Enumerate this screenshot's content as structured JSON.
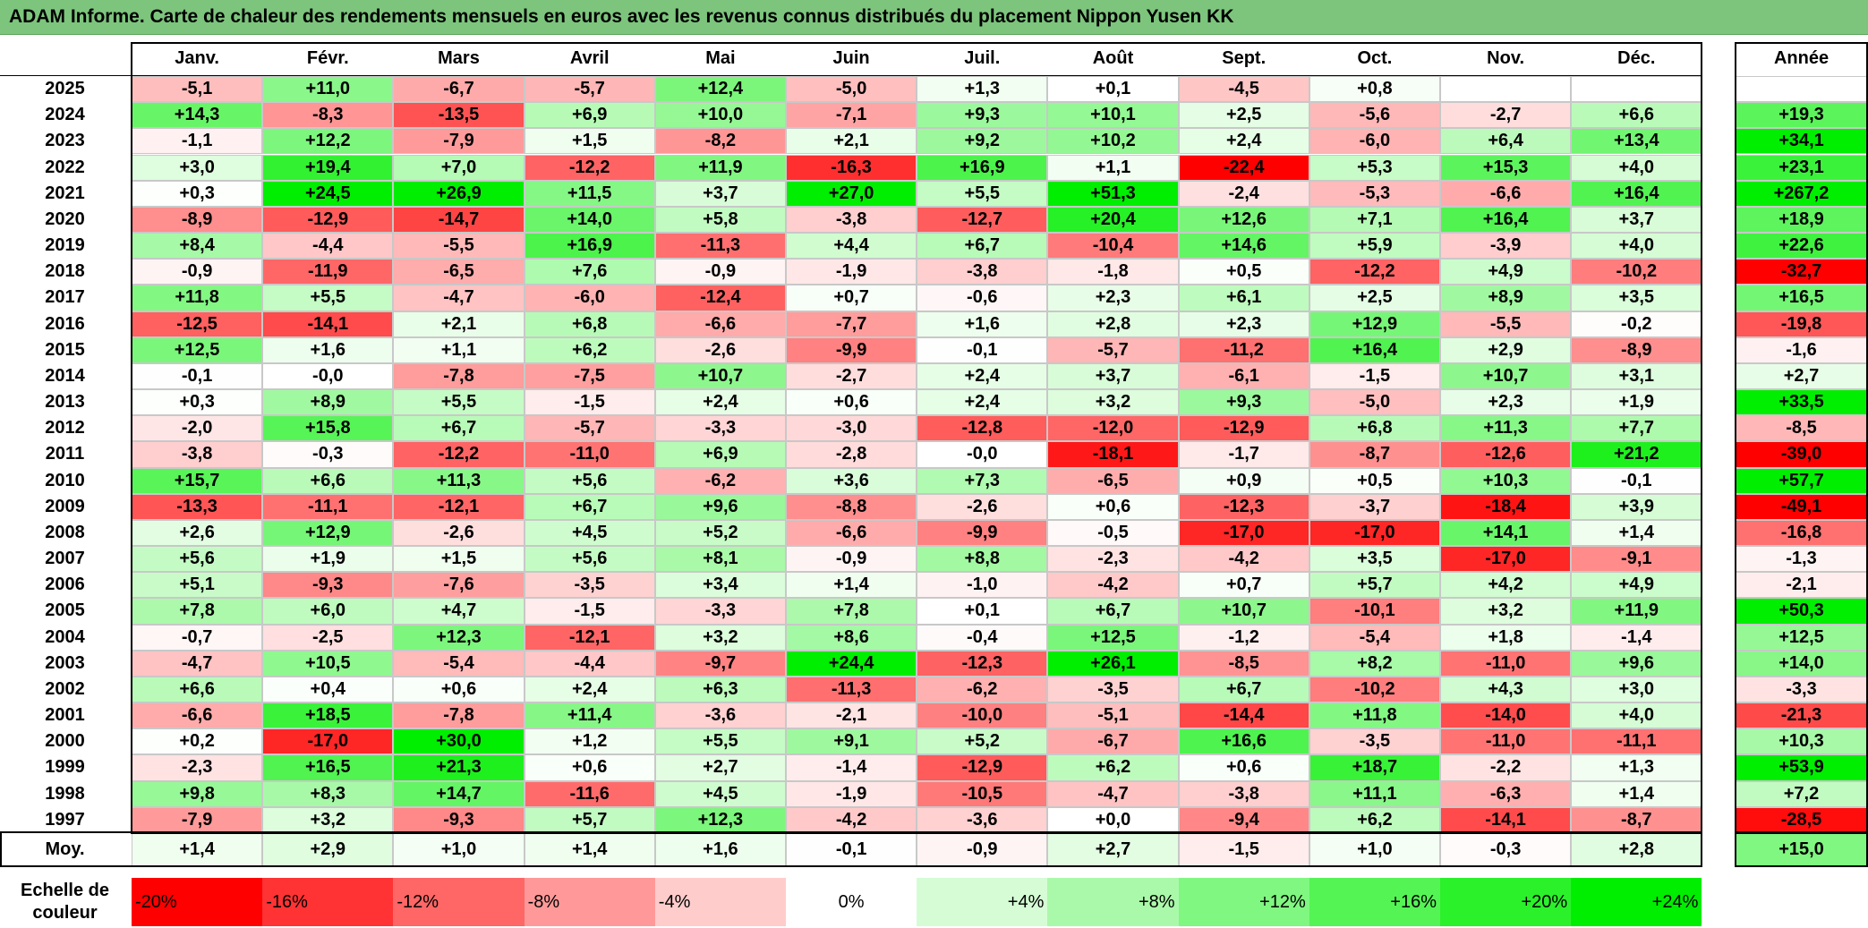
{
  "title": "ADAM Informe. Carte de chaleur des rendements mensuels en euros avec les revenus connus distribués du placement Nippon Yusen KK",
  "colors": {
    "title_bg": "#7dc57d",
    "negative_max": "#ff0000",
    "zero": "#ffffff",
    "positive_max": "#00ee00"
  },
  "chart_data": {
    "type": "heatmap",
    "title": "ADAM Informe. Carte de chaleur des rendements mensuels en euros avec les revenus connus distribués du placement Nippon Yusen KK",
    "months": [
      "Janv.",
      "Févr.",
      "Mars",
      "Avril",
      "Mai",
      "Juin",
      "Juil.",
      "Août",
      "Sept.",
      "Oct.",
      "Nov.",
      "Déc."
    ],
    "year_column_label": "Année",
    "average_row_label": "Moy.",
    "rows": [
      {
        "year": "2025",
        "values": [
          "-5,1",
          "+11,0",
          "-6,7",
          "-5,7",
          "+12,4",
          "-5,0",
          "+1,3",
          "+0,1",
          "-4,5",
          "+0,8",
          "",
          ""
        ],
        "annual": ""
      },
      {
        "year": "2024",
        "values": [
          "+14,3",
          "-8,3",
          "-13,5",
          "+6,9",
          "+10,0",
          "-7,1",
          "+9,3",
          "+10,1",
          "+2,5",
          "-5,6",
          "-2,7",
          "+6,6"
        ],
        "annual": "+19,3"
      },
      {
        "year": "2023",
        "values": [
          "-1,1",
          "+12,2",
          "-7,9",
          "+1,5",
          "-8,2",
          "+2,1",
          "+9,2",
          "+10,2",
          "+2,4",
          "-6,0",
          "+6,4",
          "+13,4"
        ],
        "annual": "+34,1"
      },
      {
        "year": "2022",
        "values": [
          "+3,0",
          "+19,4",
          "+7,0",
          "-12,2",
          "+11,9",
          "-16,3",
          "+16,9",
          "+1,1",
          "-22,4",
          "+5,3",
          "+15,3",
          "+4,0"
        ],
        "annual": "+23,1"
      },
      {
        "year": "2021",
        "values": [
          "+0,3",
          "+24,5",
          "+26,9",
          "+11,5",
          "+3,7",
          "+27,0",
          "+5,5",
          "+51,3",
          "-2,4",
          "-5,3",
          "-6,6",
          "+16,4"
        ],
        "annual": "+267,2"
      },
      {
        "year": "2020",
        "values": [
          "-8,9",
          "-12,9",
          "-14,7",
          "+14,0",
          "+5,8",
          "-3,8",
          "-12,7",
          "+20,4",
          "+12,6",
          "+7,1",
          "+16,4",
          "+3,7"
        ],
        "annual": "+18,9"
      },
      {
        "year": "2019",
        "values": [
          "+8,4",
          "-4,4",
          "-5,5",
          "+16,9",
          "-11,3",
          "+4,4",
          "+6,7",
          "-10,4",
          "+14,6",
          "+5,9",
          "-3,9",
          "+4,0"
        ],
        "annual": "+22,6"
      },
      {
        "year": "2018",
        "values": [
          "-0,9",
          "-11,9",
          "-6,5",
          "+7,6",
          "-0,9",
          "-1,9",
          "-3,8",
          "-1,8",
          "+0,5",
          "-12,2",
          "+4,9",
          "-10,2"
        ],
        "annual": "-32,7"
      },
      {
        "year": "2017",
        "values": [
          "+11,8",
          "+5,5",
          "-4,7",
          "-6,0",
          "-12,4",
          "+0,7",
          "-0,6",
          "+2,3",
          "+6,1",
          "+2,5",
          "+8,9",
          "+3,5"
        ],
        "annual": "+16,5"
      },
      {
        "year": "2016",
        "values": [
          "-12,5",
          "-14,1",
          "+2,1",
          "+6,8",
          "-6,6",
          "-7,7",
          "+1,6",
          "+2,8",
          "+2,3",
          "+12,9",
          "-5,5",
          "-0,2"
        ],
        "annual": "-19,8"
      },
      {
        "year": "2015",
        "values": [
          "+12,5",
          "+1,6",
          "+1,1",
          "+6,2",
          "-2,6",
          "-9,9",
          "-0,1",
          "-5,7",
          "-11,2",
          "+16,4",
          "+2,9",
          "-8,9"
        ],
        "annual": "-1,6"
      },
      {
        "year": "2014",
        "values": [
          "-0,1",
          "-0,0",
          "-7,8",
          "-7,5",
          "+10,7",
          "-2,7",
          "+2,4",
          "+3,7",
          "-6,1",
          "-1,5",
          "+10,7",
          "+3,1"
        ],
        "annual": "+2,7"
      },
      {
        "year": "2013",
        "values": [
          "+0,3",
          "+8,9",
          "+5,5",
          "-1,5",
          "+2,4",
          "+0,6",
          "+2,4",
          "+3,2",
          "+9,3",
          "-5,0",
          "+2,3",
          "+1,9"
        ],
        "annual": "+33,5"
      },
      {
        "year": "2012",
        "values": [
          "-2,0",
          "+15,8",
          "+6,7",
          "-5,7",
          "-3,3",
          "-3,0",
          "-12,8",
          "-12,0",
          "-12,9",
          "+6,8",
          "+11,3",
          "+7,7"
        ],
        "annual": "-8,5"
      },
      {
        "year": "2011",
        "values": [
          "-3,8",
          "-0,3",
          "-12,2",
          "-11,0",
          "+6,9",
          "-2,8",
          "-0,0",
          "-18,1",
          "-1,7",
          "-8,7",
          "-12,6",
          "+21,2"
        ],
        "annual": "-39,0"
      },
      {
        "year": "2010",
        "values": [
          "+15,7",
          "+6,6",
          "+11,3",
          "+5,6",
          "-6,2",
          "+3,6",
          "+7,3",
          "-6,5",
          "+0,9",
          "+0,5",
          "+10,3",
          "-0,1"
        ],
        "annual": "+57,7"
      },
      {
        "year": "2009",
        "values": [
          "-13,3",
          "-11,1",
          "-12,1",
          "+6,7",
          "+9,6",
          "-8,8",
          "-2,6",
          "+0,6",
          "-12,3",
          "-3,7",
          "-18,4",
          "+3,9"
        ],
        "annual": "-49,1"
      },
      {
        "year": "2008",
        "values": [
          "+2,6",
          "+12,9",
          "-2,6",
          "+4,5",
          "+5,2",
          "-6,6",
          "-9,9",
          "-0,5",
          "-17,0",
          "-17,0",
          "+14,1",
          "+1,4"
        ],
        "annual": "-16,8"
      },
      {
        "year": "2007",
        "values": [
          "+5,6",
          "+1,9",
          "+1,5",
          "+5,6",
          "+8,1",
          "-0,9",
          "+8,8",
          "-2,3",
          "-4,2",
          "+3,5",
          "-17,0",
          "-9,1"
        ],
        "annual": "-1,3"
      },
      {
        "year": "2006",
        "values": [
          "+5,1",
          "-9,3",
          "-7,6",
          "-3,5",
          "+3,4",
          "+1,4",
          "-1,0",
          "-4,2",
          "+0,7",
          "+5,7",
          "+4,2",
          "+4,9"
        ],
        "annual": "-2,1"
      },
      {
        "year": "2005",
        "values": [
          "+7,8",
          "+6,0",
          "+4,7",
          "-1,5",
          "-3,3",
          "+7,8",
          "+0,1",
          "+6,7",
          "+10,7",
          "-10,1",
          "+3,2",
          "+11,9"
        ],
        "annual": "+50,3"
      },
      {
        "year": "2004",
        "values": [
          "-0,7",
          "-2,5",
          "+12,3",
          "-12,1",
          "+3,2",
          "+8,6",
          "-0,4",
          "+12,5",
          "-1,2",
          "-5,4",
          "+1,8",
          "-1,4"
        ],
        "annual": "+12,5"
      },
      {
        "year": "2003",
        "values": [
          "-4,7",
          "+10,5",
          "-5,4",
          "-4,4",
          "-9,7",
          "+24,4",
          "-12,3",
          "+26,1",
          "-8,5",
          "+8,2",
          "-11,0",
          "+9,6"
        ],
        "annual": "+14,0"
      },
      {
        "year": "2002",
        "values": [
          "+6,6",
          "+0,4",
          "+0,6",
          "+2,4",
          "+6,3",
          "-11,3",
          "-6,2",
          "-3,5",
          "+6,7",
          "-10,2",
          "+4,3",
          "+3,0"
        ],
        "annual": "-3,3"
      },
      {
        "year": "2001",
        "values": [
          "-6,6",
          "+18,5",
          "-7,8",
          "+11,4",
          "-3,6",
          "-2,1",
          "-10,0",
          "-5,1",
          "-14,4",
          "+11,8",
          "-14,0",
          "+4,0"
        ],
        "annual": "-21,3"
      },
      {
        "year": "2000",
        "values": [
          "+0,2",
          "-17,0",
          "+30,0",
          "+1,2",
          "+5,5",
          "+9,1",
          "+5,2",
          "-6,7",
          "+16,6",
          "-3,5",
          "-11,0",
          "-11,1"
        ],
        "annual": "+10,3"
      },
      {
        "year": "1999",
        "values": [
          "-2,3",
          "+16,5",
          "+21,3",
          "+0,6",
          "+2,7",
          "-1,4",
          "-12,9",
          "+6,2",
          "+0,6",
          "+18,7",
          "-2,2",
          "+1,3"
        ],
        "annual": "+53,9"
      },
      {
        "year": "1998",
        "values": [
          "+9,8",
          "+8,3",
          "+14,7",
          "-11,6",
          "+4,5",
          "-1,9",
          "-10,5",
          "-4,7",
          "-3,8",
          "+11,1",
          "-6,3",
          "+1,4"
        ],
        "annual": "+7,2"
      },
      {
        "year": "1997",
        "values": [
          "-7,9",
          "+3,2",
          "-9,3",
          "+5,7",
          "+12,3",
          "-4,2",
          "-3,6",
          "+0,0",
          "-9,4",
          "+6,2",
          "-14,1",
          "-8,7"
        ],
        "annual": "-28,5"
      }
    ],
    "averages": {
      "values": [
        "+1,4",
        "+2,9",
        "+1,0",
        "+1,4",
        "+1,6",
        "-0,1",
        "-0,9",
        "+2,7",
        "-1,5",
        "+1,0",
        "-0,3",
        "+2,8"
      ],
      "annual": "+15,0"
    },
    "color_scale": {
      "caption": "Echelle de couleur",
      "stops": [
        "-20%",
        "-16%",
        "-12%",
        "-8%",
        "-4%",
        "0%",
        "+4%",
        "+8%",
        "+12%",
        "+16%",
        "+20%",
        "+24%"
      ]
    }
  }
}
